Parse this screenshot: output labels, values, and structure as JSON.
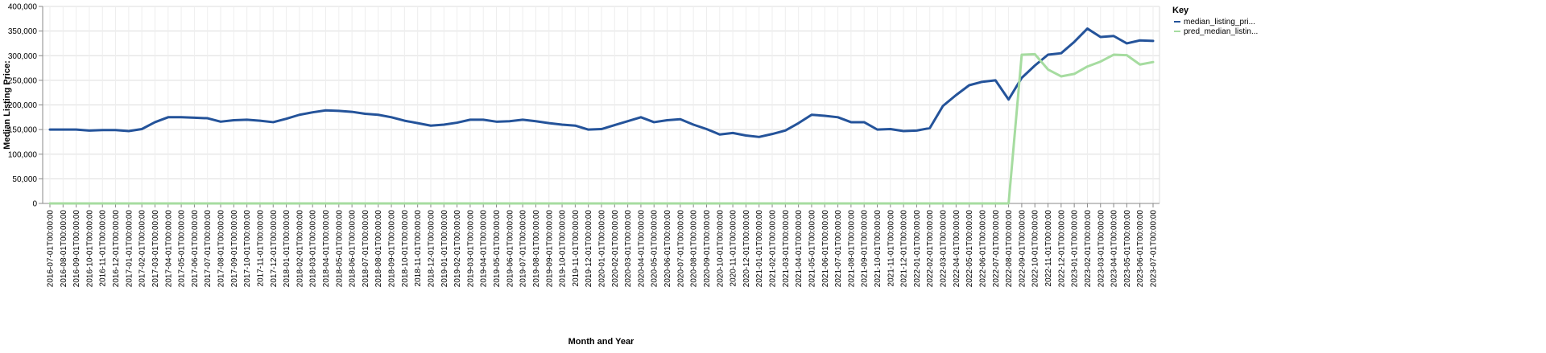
{
  "chart_data": {
    "type": "line",
    "xlabel": "Month and Year",
    "ylabel": "Median Listing Price:",
    "ylim": [
      0,
      400000
    ],
    "yticks": [
      "0",
      "50,000",
      "100,000",
      "150,000",
      "200,000",
      "250,000",
      "300,000",
      "350,000",
      "400,000"
    ],
    "grid": true,
    "legend": {
      "title": "Key",
      "position": "top-right",
      "labels": [
        "median_listing_pri...",
        "pred_median_listin..."
      ]
    },
    "categories": [
      "2016-07-01T00:00:00",
      "2016-08-01T00:00:00",
      "2016-09-01T00:00:00",
      "2016-10-01T00:00:00",
      "2016-11-01T00:00:00",
      "2016-12-01T00:00:00",
      "2017-01-01T00:00:00",
      "2017-02-01T00:00:00",
      "2017-03-01T00:00:00",
      "2017-04-01T00:00:00",
      "2017-05-01T00:00:00",
      "2017-06-01T00:00:00",
      "2017-07-01T00:00:00",
      "2017-08-01T00:00:00",
      "2017-09-01T00:00:00",
      "2017-10-01T00:00:00",
      "2017-11-01T00:00:00",
      "2017-12-01T00:00:00",
      "2018-01-01T00:00:00",
      "2018-02-01T00:00:00",
      "2018-03-01T00:00:00",
      "2018-04-01T00:00:00",
      "2018-05-01T00:00:00",
      "2018-06-01T00:00:00",
      "2018-07-01T00:00:00",
      "2018-08-01T00:00:00",
      "2018-09-01T00:00:00",
      "2018-10-01T00:00:00",
      "2018-11-01T00:00:00",
      "2018-12-01T00:00:00",
      "2019-01-01T00:00:00",
      "2019-02-01T00:00:00",
      "2019-03-01T00:00:00",
      "2019-04-01T00:00:00",
      "2019-05-01T00:00:00",
      "2019-06-01T00:00:00",
      "2019-07-01T00:00:00",
      "2019-08-01T00:00:00",
      "2019-09-01T00:00:00",
      "2019-10-01T00:00:00",
      "2019-11-01T00:00:00",
      "2019-12-01T00:00:00",
      "2020-01-01T00:00:00",
      "2020-02-01T00:00:00",
      "2020-03-01T00:00:00",
      "2020-04-01T00:00:00",
      "2020-05-01T00:00:00",
      "2020-06-01T00:00:00",
      "2020-07-01T00:00:00",
      "2020-08-01T00:00:00",
      "2020-09-01T00:00:00",
      "2020-10-01T00:00:00",
      "2020-11-01T00:00:00",
      "2020-12-01T00:00:00",
      "2021-01-01T00:00:00",
      "2021-02-01T00:00:00",
      "2021-03-01T00:00:00",
      "2021-04-01T00:00:00",
      "2021-05-01T00:00:00",
      "2021-06-01T00:00:00",
      "2021-07-01T00:00:00",
      "2021-08-01T00:00:00",
      "2021-09-01T00:00:00",
      "2021-10-01T00:00:00",
      "2021-11-01T00:00:00",
      "2021-12-01T00:00:00",
      "2022-01-01T00:00:00",
      "2022-02-01T00:00:00",
      "2022-03-01T00:00:00",
      "2022-04-01T00:00:00",
      "2022-05-01T00:00:00",
      "2022-06-01T00:00:00",
      "2022-07-01T00:00:00",
      "2022-08-01T00:00:00",
      "2022-09-01T00:00:00",
      "2022-10-01T00:00:00",
      "2022-11-01T00:00:00",
      "2022-12-01T00:00:00",
      "2023-01-01T00:00:00",
      "2023-02-01T00:00:00",
      "2023-03-01T00:00:00",
      "2023-04-01T00:00:00",
      "2023-05-01T00:00:00",
      "2023-06-01T00:00:00",
      "2023-07-01T00:00:00"
    ],
    "series": [
      {
        "name": "median_listing_pri...",
        "color": "#24539a",
        "values": [
          150000,
          150000,
          150000,
          148000,
          149000,
          149000,
          147000,
          151000,
          165000,
          175000,
          175000,
          174000,
          173000,
          166000,
          169000,
          170000,
          168000,
          165000,
          172000,
          180000,
          185000,
          189000,
          188000,
          186000,
          182000,
          180000,
          175000,
          168000,
          163000,
          158000,
          160000,
          164000,
          170000,
          170000,
          166000,
          167000,
          170000,
          167000,
          163000,
          160000,
          158000,
          150000,
          151000,
          159000,
          167000,
          175000,
          165000,
          169000,
          171000,
          160000,
          151000,
          140000,
          143000,
          138000,
          135000,
          141000,
          148000,
          163000,
          180000,
          178000,
          175000,
          165000,
          165000,
          150000,
          151000,
          147000,
          148000,
          153000,
          198000,
          220000,
          240000,
          247000,
          250000,
          211000,
          255000,
          280000,
          302000,
          305000,
          328000,
          355000,
          338000,
          340000,
          325000,
          331000,
          330000
        ]
      },
      {
        "name": "pred_median_listin...",
        "color": "#a6dca0",
        "values": [
          0,
          0,
          0,
          0,
          0,
          0,
          0,
          0,
          0,
          0,
          0,
          0,
          0,
          0,
          0,
          0,
          0,
          0,
          0,
          0,
          0,
          0,
          0,
          0,
          0,
          0,
          0,
          0,
          0,
          0,
          0,
          0,
          0,
          0,
          0,
          0,
          0,
          0,
          0,
          0,
          0,
          0,
          0,
          0,
          0,
          0,
          0,
          0,
          0,
          0,
          0,
          0,
          0,
          0,
          0,
          0,
          0,
          0,
          0,
          0,
          0,
          0,
          0,
          0,
          0,
          0,
          0,
          0,
          0,
          0,
          0,
          0,
          0,
          0,
          302000,
          303000,
          272000,
          258000,
          263000,
          278000,
          288000,
          302000,
          301000,
          282000,
          287000
        ]
      }
    ]
  }
}
